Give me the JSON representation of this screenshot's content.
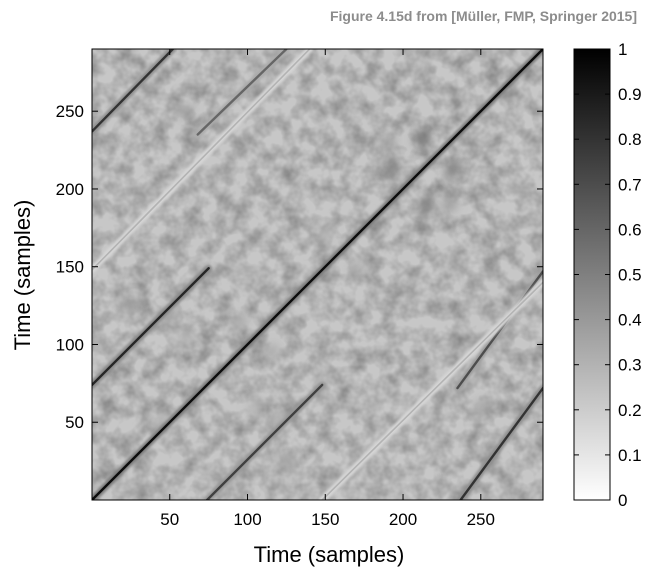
{
  "figure_credit": "Figure 4.15d from [Müller, FMP, Springer 2015]",
  "chart_data": {
    "type": "heatmap",
    "title": "",
    "xlabel": "Time (samples)",
    "ylabel": "Time (samples)",
    "xlim": [
      0,
      290
    ],
    "ylim": [
      0,
      290
    ],
    "xticks": [
      50,
      100,
      150,
      200,
      250
    ],
    "yticks": [
      50,
      100,
      150,
      200,
      250
    ],
    "colorbar": {
      "range": [
        0,
        1
      ],
      "ticks": [
        "0",
        "0.1",
        "0.2",
        "0.3",
        "0.4",
        "0.5",
        "0.6",
        "0.7",
        "0.8",
        "0.9",
        "1"
      ],
      "colormap": "white-to-black grayscale"
    },
    "background_level": 0.22,
    "stripes": [
      {
        "x0": 0,
        "y0": 0,
        "x1": 290,
        "y1": 290,
        "intensity": 0.95
      },
      {
        "x0": 0,
        "y0": 74,
        "x1": 75,
        "y1": 149,
        "intensity": 0.85
      },
      {
        "x0": 74,
        "y0": 0,
        "x1": 148,
        "y1": 74,
        "intensity": 0.75
      },
      {
        "x0": 0,
        "y0": 237,
        "x1": 52,
        "y1": 290,
        "intensity": 0.8
      },
      {
        "x0": 237,
        "y0": 0,
        "x1": 290,
        "y1": 72,
        "intensity": 0.8
      },
      {
        "x0": 235,
        "y0": 72,
        "x1": 290,
        "y1": 147,
        "intensity": 0.7
      },
      {
        "x0": 68,
        "y0": 235,
        "x1": 125,
        "y1": 290,
        "intensity": 0.6
      },
      {
        "x0": 0,
        "y0": 148,
        "x1": 140,
        "y1": 290,
        "intensity": 0.3
      },
      {
        "x0": 148,
        "y0": 0,
        "x1": 290,
        "y1": 140,
        "intensity": 0.3
      }
    ],
    "blobs": [
      {
        "x": 212,
        "y": 233,
        "intensity": 0.55
      },
      {
        "x": 232,
        "y": 212,
        "intensity": 0.55
      },
      {
        "x": 192,
        "y": 213,
        "intensity": 0.5
      },
      {
        "x": 215,
        "y": 190,
        "intensity": 0.5
      },
      {
        "x": 230,
        "y": 190,
        "intensity": 0.4
      },
      {
        "x": 190,
        "y": 230,
        "intensity": 0.4
      },
      {
        "x": 25,
        "y": 125,
        "intensity": 0.4
      },
      {
        "x": 125,
        "y": 25,
        "intensity": 0.4
      },
      {
        "x": 50,
        "y": 120,
        "intensity": 0.35
      },
      {
        "x": 120,
        "y": 50,
        "intensity": 0.35
      },
      {
        "x": 95,
        "y": 115,
        "intensity": 0.35
      },
      {
        "x": 115,
        "y": 95,
        "intensity": 0.35
      },
      {
        "x": 45,
        "y": 50,
        "intensity": 0.3
      },
      {
        "x": 105,
        "y": 60,
        "intensity": 0.3
      },
      {
        "x": 60,
        "y": 105,
        "intensity": 0.3
      },
      {
        "x": 150,
        "y": 170,
        "intensity": 0.3
      },
      {
        "x": 170,
        "y": 150,
        "intensity": 0.3
      },
      {
        "x": 250,
        "y": 60,
        "intensity": 0.35
      },
      {
        "x": 60,
        "y": 250,
        "intensity": 0.35
      }
    ]
  }
}
